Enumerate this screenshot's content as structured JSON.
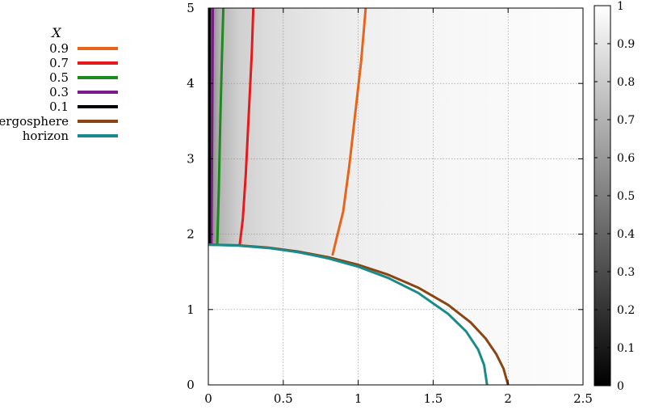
{
  "chart_data": {
    "type": "line",
    "title": "",
    "xlabel": "",
    "ylabel": "",
    "xlim": [
      0,
      2.5
    ],
    "ylim": [
      0,
      5
    ],
    "x_ticks": [
      "0",
      "0.5",
      "1",
      "1.5",
      "2",
      "2.5"
    ],
    "y_ticks": [
      "0",
      "1",
      "2",
      "3",
      "4",
      "5"
    ],
    "grid": true,
    "legend_title": "X",
    "legend_position": "outside-left",
    "background": "grayscale density map (dark near x=0, near white toward large x)",
    "colorbar": {
      "range": [
        0,
        1
      ],
      "ticks": [
        "0",
        "0.1",
        "0.2",
        "0.3",
        "0.4",
        "0.5",
        "0.6",
        "0.7",
        "0.8",
        "0.9",
        "1"
      ],
      "colormap": "gray"
    },
    "series": [
      {
        "name": "0.9",
        "color": "#e8641b",
        "x": [
          1.05,
          1.02,
          0.98,
          0.94,
          0.9,
          0.86,
          0.83
        ],
        "y": [
          5.0,
          4.3,
          3.6,
          2.9,
          2.3,
          1.98,
          1.73
        ]
      },
      {
        "name": "0.7",
        "color": "#e41a1c",
        "x": [
          0.3,
          0.29,
          0.27,
          0.25,
          0.23,
          0.21
        ],
        "y": [
          5.0,
          4.4,
          3.6,
          2.8,
          2.2,
          1.87
        ]
      },
      {
        "name": "0.5",
        "color": "#1d8a1d",
        "x": [
          0.1,
          0.09,
          0.08,
          0.07,
          0.06
        ],
        "y": [
          5.0,
          4.3,
          3.5,
          2.6,
          1.88
        ]
      },
      {
        "name": "0.3",
        "color": "#7b1a8a",
        "x": [
          0.03,
          0.028,
          0.024,
          0.02
        ],
        "y": [
          5.0,
          4.2,
          3.0,
          1.88
        ]
      },
      {
        "name": "0.1",
        "color": "#000000",
        "x": [
          0.01,
          0.009,
          0.008,
          0.007
        ],
        "y": [
          5.0,
          4.2,
          3.0,
          1.88
        ]
      },
      {
        "name": "ergosphere",
        "color": "#8b4513",
        "x": [
          0,
          0.2,
          0.4,
          0.6,
          0.8,
          1.0,
          1.2,
          1.4,
          1.6,
          1.75,
          1.85,
          1.92,
          1.97,
          2.0
        ],
        "y": [
          1.86,
          1.852,
          1.822,
          1.769,
          1.694,
          1.593,
          1.462,
          1.291,
          1.061,
          0.829,
          0.616,
          0.412,
          0.215,
          0.0
        ]
      },
      {
        "name": "horizon",
        "color": "#1a8a8a",
        "x": [
          0,
          0.2,
          0.4,
          0.6,
          0.8,
          1.0,
          1.2,
          1.4,
          1.6,
          1.72,
          1.8,
          1.84,
          1.86
        ],
        "y": [
          1.86,
          1.849,
          1.816,
          1.761,
          1.679,
          1.569,
          1.419,
          1.221,
          0.942,
          0.71,
          0.47,
          0.264,
          0.0
        ]
      }
    ]
  }
}
